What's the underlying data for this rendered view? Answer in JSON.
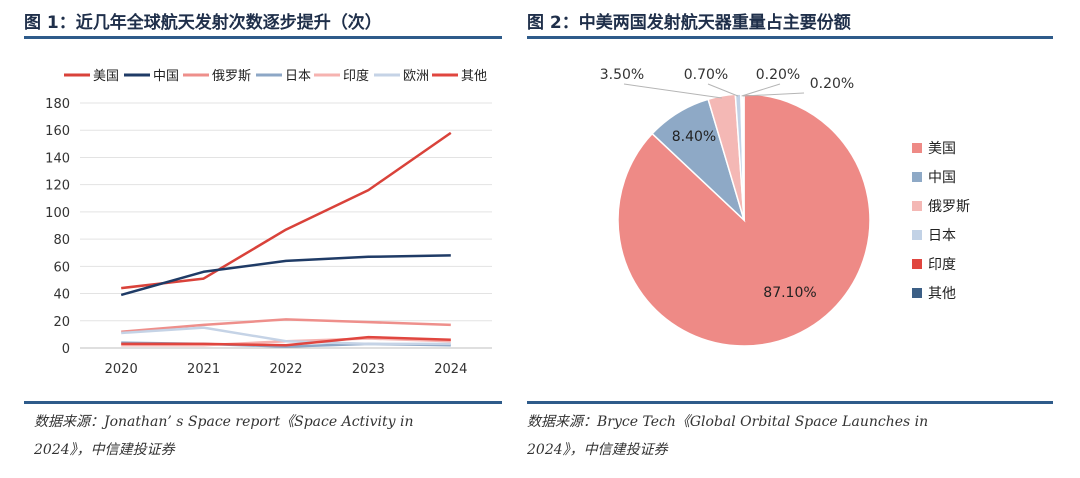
{
  "left_figure": {
    "title": "图 1：近几年全球航天发射次数逐步提升（次）",
    "source_line1": "数据来源：Jonathan’ s Space report《Space Activity in",
    "source_line2": "2024》，中信建投证券"
  },
  "right_figure": {
    "title": "图 2：中美两国发射航天器重量占主要份额",
    "source_line1": "数据来源：Bryce Tech《Global Orbital Space Launches in",
    "source_line2": "2024》，中信建投证券"
  },
  "chart_data": [
    {
      "type": "line",
      "x": [
        "2020",
        "2021",
        "2022",
        "2023",
        "2024"
      ],
      "ylim": [
        0,
        180
      ],
      "yticks": [
        0,
        20,
        40,
        60,
        80,
        100,
        120,
        140,
        160,
        180
      ],
      "grid": true,
      "legend_position": "top",
      "series": [
        {
          "name": "美国",
          "color": "#d9423a",
          "values": [
            44,
            51,
            87,
            116,
            158
          ]
        },
        {
          "name": "中国",
          "color": "#1f3b66",
          "values": [
            39,
            56,
            64,
            67,
            68
          ]
        },
        {
          "name": "俄罗斯",
          "color": "#ee8f8b",
          "values": [
            12,
            17,
            21,
            19,
            17
          ]
        },
        {
          "name": "日本",
          "color": "#8da7c6",
          "values": [
            4,
            3,
            1,
            3,
            2
          ]
        },
        {
          "name": "印度",
          "color": "#f6b3b0",
          "values": [
            2,
            2,
            5,
            7,
            5
          ]
        },
        {
          "name": "欧洲",
          "color": "#c5d3e6",
          "values": [
            11,
            15,
            5,
            3,
            3
          ]
        },
        {
          "name": "其他",
          "color": "#e0463f",
          "values": [
            3,
            3,
            2,
            8,
            6
          ]
        }
      ]
    },
    {
      "type": "pie",
      "legend_position": "right",
      "slices": [
        {
          "name": "美国",
          "value": 87.1,
          "label": "87.10%",
          "color": "#ee8a86"
        },
        {
          "name": "中国",
          "value": 8.4,
          "label": "8.40%",
          "color": "#8ea9c6"
        },
        {
          "name": "俄罗斯",
          "value": 3.5,
          "label": "3.50%",
          "color": "#f4b8b5"
        },
        {
          "name": "日本",
          "value": 0.7,
          "label": "0.70%",
          "color": "#c2d2e6"
        },
        {
          "name": "印度",
          "value": 0.2,
          "label": "0.20%",
          "color": "#e0463f"
        },
        {
          "name": "其他",
          "value": 0.2,
          "label": "0.20%",
          "color": "#3c5f86"
        }
      ]
    }
  ]
}
